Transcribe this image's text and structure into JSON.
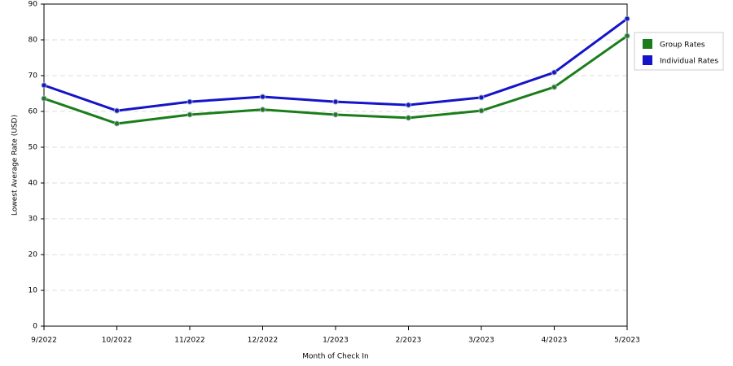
{
  "chart_data": {
    "type": "line",
    "x_label": "Month of Check In",
    "y_label": "Lowest Average Rate (USD)",
    "categories": [
      "9/2022",
      "10/2022",
      "11/2022",
      "12/2022",
      "1/2023",
      "2/2023",
      "3/2023",
      "4/2023",
      "5/2023"
    ],
    "series": [
      {
        "name": "Group Rates",
        "color": "#1a7d1a",
        "values": [
          63.6,
          56.6,
          59.1,
          60.5,
          59.1,
          58.2,
          60.2,
          66.8,
          81.1
        ]
      },
      {
        "name": "Individual Rates",
        "color": "#1414c8",
        "values": [
          67.3,
          60.2,
          62.7,
          64.1,
          62.7,
          61.8,
          63.9,
          70.9,
          85.9
        ]
      }
    ],
    "ylim": [
      0,
      90
    ],
    "yticks": [
      0,
      10,
      20,
      30,
      40,
      50,
      60,
      70,
      80,
      90
    ],
    "grid": true,
    "legend": "right"
  }
}
